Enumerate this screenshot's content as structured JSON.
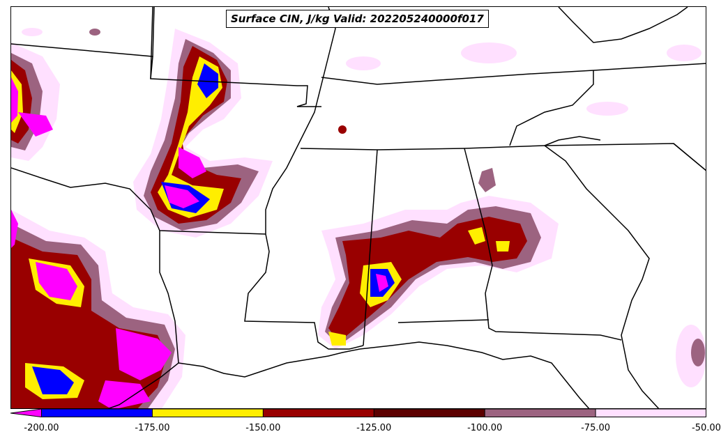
{
  "title": "Surface CIN, J/kg Valid: 202205240000f017",
  "colorbar": {
    "ticks": [
      "-200.00",
      "-175.00",
      "-150.00",
      "-125.00",
      "-100.00",
      "-75.00",
      "-50.00"
    ],
    "tick_values": [
      -200,
      -175,
      -150,
      -125,
      -100,
      -75,
      -50
    ],
    "range": [
      -207,
      -50
    ],
    "extend": "min",
    "under_color": "#ff00ff",
    "bins": [
      {
        "from": -200,
        "to": -175,
        "color": "#0000ff"
      },
      {
        "from": -175,
        "to": -150,
        "color": "#ffee00"
      },
      {
        "from": -150,
        "to": -125,
        "color": "#990000"
      },
      {
        "from": -125,
        "to": -100,
        "color": "#5c0000"
      },
      {
        "from": -100,
        "to": -75,
        "color": "#9c6380"
      },
      {
        "from": -75,
        "to": -50,
        "color": "#ffe0ff"
      }
    ]
  }
}
